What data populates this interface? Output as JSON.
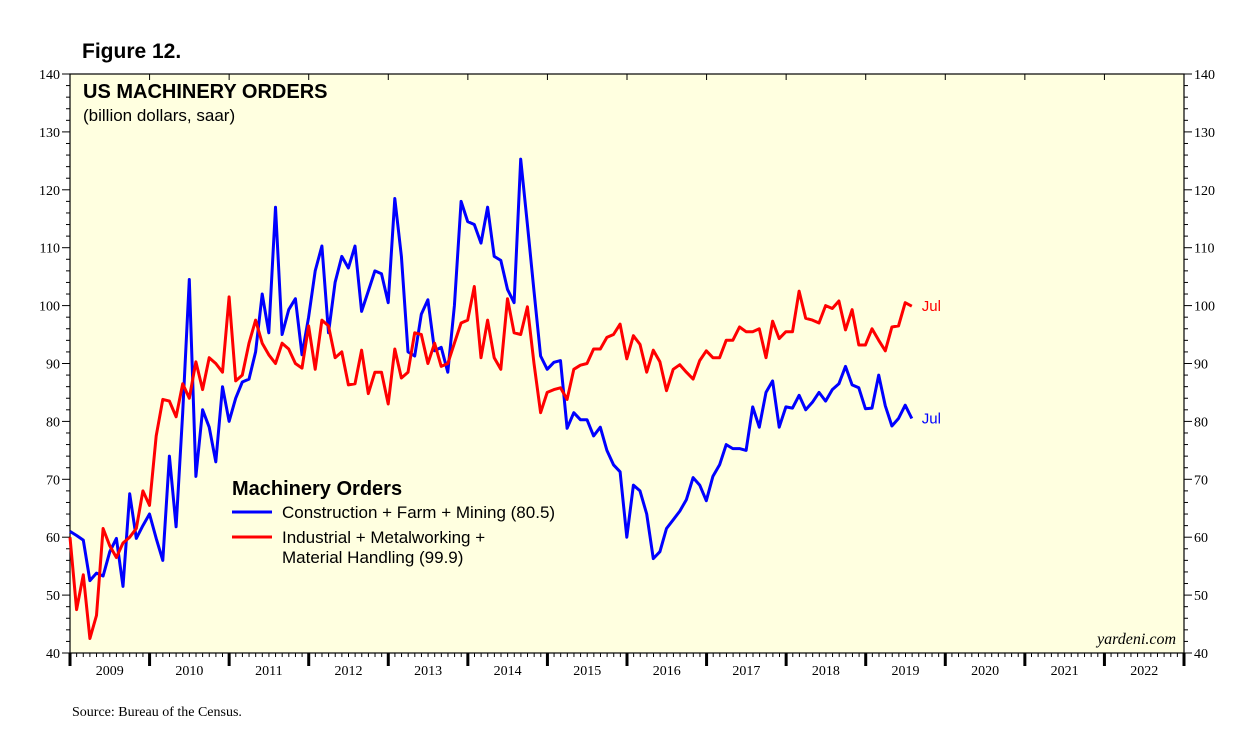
{
  "figure_label": "Figure 12.",
  "source": "Source: Bureau of the Census.",
  "watermark": "yardeni.com",
  "colors": {
    "background": "#ffffe0",
    "series_blue": "#0000ff",
    "series_red": "#ff0000"
  },
  "chart_data": {
    "type": "line",
    "title": "US MACHINERY ORDERS",
    "subtitle": "(billion dollars, saar)",
    "ylim": [
      40,
      140
    ],
    "yticks": [
      "40",
      "50",
      "60",
      "70",
      "80",
      "90",
      "100",
      "110",
      "120",
      "130",
      "140"
    ],
    "xlim": [
      2009.0,
      2023.0
    ],
    "year_labels": [
      "2009",
      "2010",
      "2011",
      "2012",
      "2013",
      "2014",
      "2015",
      "2016",
      "2017",
      "2018",
      "2019",
      "2020",
      "2021",
      "2022"
    ],
    "legend": {
      "title": "Machinery Orders",
      "entries": [
        {
          "lines": [
            "Construction + Farm + Mining (80.5)"
          ],
          "color": "#0000ff"
        },
        {
          "lines": [
            "Industrial + Metalworking +",
            "Material Handling (99.9)"
          ],
          "color": "#ff0000"
        }
      ]
    },
    "series": [
      {
        "name": "Construction + Farm + Mining",
        "color": "#0000ff",
        "end_label": "Jul",
        "start": 2009.0,
        "step": 0.0833,
        "values": [
          61,
          60.3,
          59.5,
          52.5,
          53.8,
          53.3,
          57.5,
          59.8,
          51.5,
          67.5,
          59.8,
          62,
          64,
          59.8,
          56,
          74,
          61.8,
          81.5,
          104.5,
          70.5,
          82,
          79,
          73,
          86,
          80,
          84,
          86.8,
          87.3,
          92,
          102,
          95.3,
          117,
          95,
          99.3,
          101.2,
          91.5,
          98,
          106,
          110.3,
          95.3,
          104,
          108.5,
          106.5,
          110.3,
          99,
          102.5,
          106,
          105.5,
          100.5,
          118.5,
          108.5,
          92,
          91.3,
          98.5,
          101,
          92.2,
          92.8,
          88.5,
          100,
          118,
          114.5,
          114,
          110.8,
          117,
          108.5,
          107.8,
          102.8,
          100.5,
          125.3,
          114,
          102.5,
          91.3,
          89,
          90.2,
          90.5,
          78.8,
          81.5,
          80.3,
          80.3,
          77.5,
          79,
          75,
          72.5,
          71.3,
          60,
          69,
          68,
          64,
          56.3,
          57.5,
          61.5,
          63,
          64.5,
          66.5,
          70.3,
          69,
          66.3,
          70.5,
          72.5,
          76,
          75.3,
          75.3,
          75,
          82.5,
          79,
          85,
          87,
          79,
          82.5,
          82.3,
          84.5,
          82,
          83.3,
          85,
          83.5,
          85.5,
          86.5,
          89.5,
          86.3,
          85.8,
          82.2,
          82.3,
          88,
          82.7,
          79.2,
          80.5,
          82.8,
          80.5
        ]
      },
      {
        "name": "Industrial + Metalworking + Material Handling",
        "color": "#ff0000",
        "end_label": "Jul",
        "start": 2009.0,
        "step": 0.0833,
        "values": [
          60,
          47.5,
          53.5,
          42.5,
          46.5,
          61.5,
          58.5,
          56.5,
          59,
          60,
          61.5,
          68,
          65.5,
          77.5,
          83.8,
          83.5,
          80.8,
          86.5,
          84,
          90.3,
          85.5,
          91,
          90,
          88.5,
          101.5,
          87,
          88,
          93.5,
          97.5,
          93.5,
          91.5,
          90,
          93.5,
          92.5,
          90,
          89.2,
          96.5,
          89,
          97.5,
          96.5,
          91,
          92,
          86.3,
          86.5,
          92.3,
          84.8,
          88.5,
          88.5,
          83,
          92.5,
          87.5,
          88.5,
          95.3,
          95,
          90,
          93.5,
          89.5,
          90,
          93.5,
          97,
          97.5,
          103.3,
          91,
          97.5,
          91,
          89,
          101.2,
          95.3,
          95,
          99.8,
          90,
          81.5,
          85,
          85.5,
          85.8,
          83.8,
          89,
          89.7,
          90,
          92.5,
          92.5,
          94.5,
          95,
          96.8,
          90.8,
          94.8,
          93.3,
          88.5,
          92.3,
          90.3,
          85.3,
          89,
          89.8,
          88.5,
          87.3,
          90.5,
          92.2,
          91,
          91,
          94,
          94,
          96.3,
          95.5,
          95.5,
          96,
          91,
          97.3,
          94.3,
          95.5,
          95.5,
          102.5,
          97.8,
          97.5,
          97,
          100,
          99.5,
          100.8,
          95.8,
          99.3,
          93.2,
          93.2,
          96,
          94,
          92.2,
          96.3,
          96.5,
          100.5,
          99.9
        ]
      }
    ]
  }
}
